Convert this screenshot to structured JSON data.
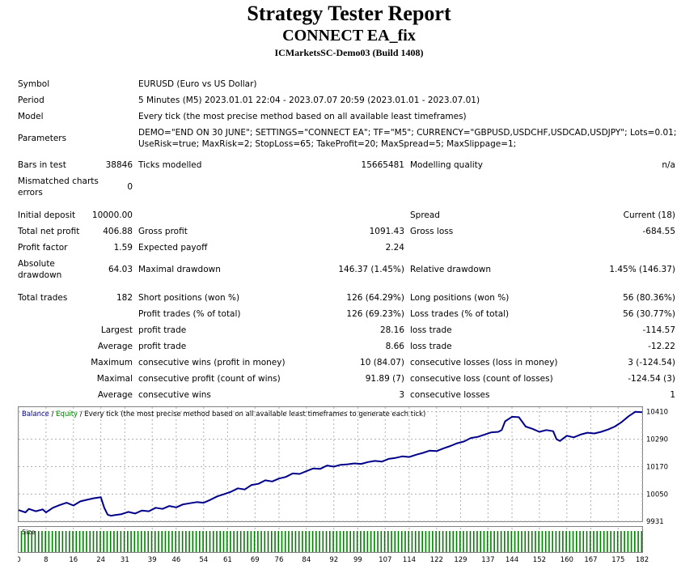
{
  "header": {
    "title": "Strategy Tester Report",
    "ea_name": "CONNECT EA_fix",
    "server": "ICMarketsSC-Demo03 (Build 1408)"
  },
  "info": {
    "symbol_label": "Symbol",
    "symbol": "EURUSD (Euro vs US Dollar)",
    "period_label": "Period",
    "period": "5 Minutes (M5) 2023.01.01 22:04 - 2023.07.07 20:59 (2023.01.01 - 2023.07.01)",
    "model_label": "Model",
    "model": "Every tick (the most precise method based on all available least timeframes)",
    "parameters_label": "Parameters",
    "parameters_line1": "DEMO=\"END ON 30 JUNE\"; SETTINGS=\"CONNECT EA\"; TF=\"M5\"; CURRENCY=\"GBPUSD,USDCHF,USDCAD,USDJPY\"; Lots=0.01;",
    "parameters_line2": "UseRisk=true; MaxRisk=2; StopLoss=65; TakeProfit=20; MaxSpread=5; MaxSlippage=1;"
  },
  "test": {
    "bars_label": "Bars in test",
    "bars": "38846",
    "ticks_label": "Ticks modelled",
    "ticks": "15665481",
    "quality_label": "Modelling quality",
    "quality": "n/a",
    "mismatch_label_1": "Mismatched charts",
    "mismatch_label_2": "errors",
    "mismatch": "0"
  },
  "stats": {
    "initial_deposit_label": "Initial deposit",
    "initial_deposit": "10000.00",
    "spread_label": "Spread",
    "spread": "Current (18)",
    "net_profit_label": "Total net profit",
    "net_profit": "406.88",
    "gross_profit_label": "Gross profit",
    "gross_profit": "1091.43",
    "gross_loss_label": "Gross loss",
    "gross_loss": "-684.55",
    "profit_factor_label": "Profit factor",
    "profit_factor": "1.59",
    "expected_payoff_label": "Expected payoff",
    "expected_payoff": "2.24",
    "abs_dd_label_1": "Absolute",
    "abs_dd_label_2": "drawdown",
    "abs_dd": "64.03",
    "max_dd_label": "Maximal drawdown",
    "max_dd": "146.37 (1.45%)",
    "rel_dd_label": "Relative drawdown",
    "rel_dd": "1.45% (146.37)"
  },
  "trades": {
    "total_label": "Total trades",
    "total": "182",
    "short_label": "Short positions (won %)",
    "short": "126 (64.29%)",
    "long_label": "Long positions (won %)",
    "long": "56 (80.36%)",
    "profit_trades_label": "Profit trades (% of total)",
    "profit_trades": "126 (69.23%)",
    "loss_trades_label": "Loss trades (% of total)",
    "loss_trades": "56 (30.77%)",
    "largest": "Largest",
    "average": "Average",
    "maximum": "Maximum",
    "maximal": "Maximal",
    "average2": "Average",
    "profit_trade_label": "profit trade",
    "largest_profit": "28.16",
    "loss_trade_label": "loss trade",
    "largest_loss": "-114.57",
    "avg_profit_trade_label": "profit trade",
    "avg_profit": "8.66",
    "avg_loss_trade_label": "loss trade",
    "avg_loss": "-12.22",
    "cons_wins_money_label": "consecutive wins (profit in money)",
    "cons_wins_money": "10 (84.07)",
    "cons_losses_money_label": "consecutive losses (loss in money)",
    "cons_losses_money": "3 (-124.54)",
    "cons_profit_count_label": "consecutive profit (count of wins)",
    "cons_profit_count": "91.89 (7)",
    "cons_loss_count_label": "consecutive loss (count of losses)",
    "cons_loss_count": "-124.54 (3)",
    "avg_cons_wins_label": "consecutive wins",
    "avg_cons_wins": "3",
    "avg_cons_losses_label": "consecutive losses",
    "avg_cons_losses": "1"
  },
  "chart_data": {
    "type": "line",
    "legend": {
      "balance": "Balance",
      "separator": " / ",
      "equity": "Equity",
      "note": " / Every tick (the most precise method based on all available least timeframes to generate each tick)"
    },
    "size_label": "Size",
    "ylim": [
      9931,
      10430
    ],
    "y_ticks": [
      10410,
      10290,
      10170,
      10050,
      9931
    ],
    "xlim": [
      0,
      182
    ],
    "x_ticks": [
      0,
      8,
      16,
      24,
      31,
      39,
      46,
      54,
      61,
      69,
      76,
      84,
      92,
      99,
      107,
      114,
      122,
      129,
      137,
      144,
      152,
      160,
      167,
      175,
      182
    ],
    "colors": {
      "balance": "#00008b",
      "equity": "#008000",
      "size": "#008000",
      "grid": "#b0b0b0",
      "tick_label": "#000000"
    },
    "series": [
      {
        "name": "Balance",
        "x": [
          0,
          2,
          3,
          5,
          7,
          8,
          10,
          12,
          14,
          16,
          18,
          20,
          22,
          24,
          25,
          26,
          27,
          28,
          30,
          32,
          34,
          36,
          38,
          40,
          42,
          44,
          46,
          48,
          50,
          52,
          54,
          56,
          58,
          60,
          62,
          64,
          66,
          68,
          70,
          72,
          74,
          76,
          78,
          80,
          82,
          84,
          86,
          88,
          90,
          92,
          94,
          96,
          98,
          100,
          102,
          104,
          106,
          108,
          110,
          112,
          114,
          116,
          118,
          120,
          122,
          124,
          126,
          128,
          130,
          132,
          134,
          136,
          138,
          140,
          141,
          142,
          144,
          146,
          148,
          150,
          152,
          154,
          156,
          157,
          158,
          160,
          162,
          164,
          166,
          168,
          170,
          172,
          174,
          176,
          178,
          180,
          182
        ],
        "values": [
          9980,
          9970,
          9985,
          9975,
          9983,
          9970,
          9990,
          10002,
          10012,
          10000,
          10018,
          10025,
          10032,
          10036,
          9990,
          9960,
          9955,
          9958,
          9962,
          9972,
          9965,
          9978,
          9975,
          9990,
          9985,
          9998,
          9992,
          10005,
          10010,
          10015,
          10012,
          10025,
          10040,
          10050,
          10060,
          10075,
          10070,
          10090,
          10095,
          10110,
          10105,
          10118,
          10125,
          10140,
          10138,
          10150,
          10162,
          10160,
          10175,
          10170,
          10178,
          10180,
          10184,
          10182,
          10190,
          10195,
          10192,
          10204,
          10208,
          10215,
          10212,
          10222,
          10230,
          10240,
          10238,
          10250,
          10260,
          10272,
          10280,
          10295,
          10300,
          10310,
          10320,
          10322,
          10330,
          10368,
          10388,
          10386,
          10345,
          10335,
          10322,
          10330,
          10325,
          10290,
          10282,
          10305,
          10298,
          10310,
          10318,
          10315,
          10322,
          10332,
          10345,
          10365,
          10390,
          10410,
          10408
        ]
      }
    ]
  }
}
